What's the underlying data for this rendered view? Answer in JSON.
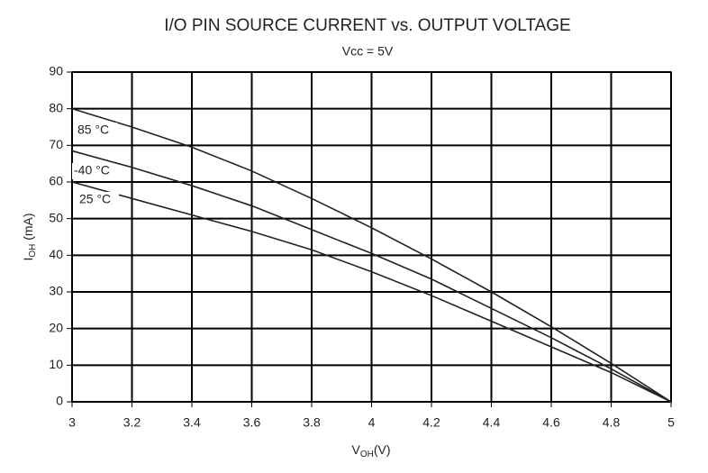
{
  "chart_data": {
    "type": "line",
    "title": "I/O PIN SOURCE CURRENT vs. OUTPUT VOLTAGE",
    "subtitle": "Vcc = 5V",
    "ylabel": [
      "I",
      "OH",
      " (mA)"
    ],
    "xlabel": [
      "V",
      "OH",
      "(V)"
    ],
    "x": [
      3,
      3.2,
      3.4,
      3.6,
      3.8,
      4,
      4.2,
      4.4,
      4.6,
      4.8,
      5
    ],
    "series": [
      {
        "name": "85 °C",
        "color": "#222222",
        "values": [
          80,
          75,
          69.5,
          63,
          55.5,
          47.5,
          39,
          30,
          20.5,
          10.5,
          0
        ]
      },
      {
        "name": "-40 °C",
        "color": "#222222",
        "values": [
          68.5,
          64,
          59,
          53.5,
          47,
          40.5,
          33.5,
          25.5,
          17.5,
          9,
          0
        ]
      },
      {
        "name": "25 °C",
        "color": "#222222",
        "values": [
          60,
          55.5,
          51,
          46.5,
          41.5,
          35.5,
          29,
          22,
          15,
          8,
          0
        ]
      }
    ],
    "xlim": [
      3,
      5
    ],
    "ylim": [
      0,
      90
    ],
    "xticks": [
      3,
      3.2,
      3.4,
      3.6,
      3.8,
      4,
      4.2,
      4.4,
      4.6,
      4.8,
      5
    ],
    "yticks": [
      0,
      10,
      20,
      30,
      40,
      50,
      60,
      70,
      80,
      90
    ],
    "grid": true
  }
}
